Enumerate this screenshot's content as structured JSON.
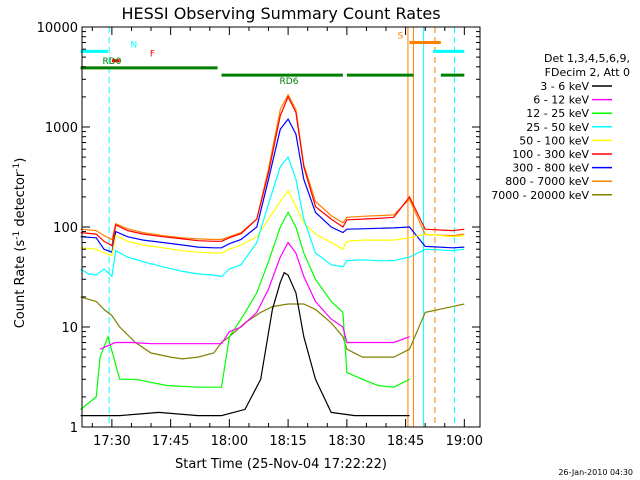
{
  "chart_data": {
    "type": "line",
    "title": "HESSI Observing Summary Count Rates",
    "xlabel": "Start Time (25-Nov-04 17:22:22)",
    "ylabel": "Count Rate (s",
    "ylabel_sup1": "-1",
    "ylabel_mid": " detector",
    "ylabel_sup2": "-1",
    "ylabel_end": ")",
    "y_scale": "log",
    "ylim": [
      1,
      10000
    ],
    "xlim": [
      "17:22:22",
      "19:04:00"
    ],
    "x_tick_labels": [
      "17:30",
      "17:45",
      "18:00",
      "18:15",
      "18:30",
      "18:45",
      "19:00"
    ],
    "x_tick_minutes": [
      450,
      465,
      480,
      495,
      510,
      525,
      540
    ],
    "y_tick_labels": [
      "1",
      "10",
      "100",
      "1000",
      "10000"
    ],
    "y_tick_values": [
      1,
      10,
      100,
      1000,
      10000
    ],
    "legend_header": [
      "Det 1,3,4,5,6,9,",
      "FDecim 2, Att 0"
    ],
    "legend_placement": "right",
    "series": [
      {
        "name": "3 - 6 keV",
        "color": "#000000",
        "points": [
          [
            442,
            1.3
          ],
          [
            452,
            1.3
          ],
          [
            462,
            1.4
          ],
          [
            472,
            1.3
          ],
          [
            478,
            1.3
          ],
          [
            484,
            1.5
          ],
          [
            488,
            3
          ],
          [
            491,
            15
          ],
          [
            493,
            28
          ],
          [
            494,
            35
          ],
          [
            495,
            33
          ],
          [
            497,
            22
          ],
          [
            499,
            8
          ],
          [
            502,
            3
          ],
          [
            506,
            1.4
          ],
          [
            512,
            1.3
          ],
          [
            522,
            1.3
          ],
          [
            526,
            1.3
          ]
        ]
      },
      {
        "name": "6 - 12 keV",
        "color": "#ff00ff",
        "points": [
          [
            447,
            6
          ],
          [
            449,
            6.5
          ],
          [
            451,
            7
          ],
          [
            455,
            7
          ],
          [
            460,
            6.8
          ],
          [
            465,
            6.8
          ],
          [
            470,
            6.8
          ],
          [
            475,
            6.8
          ],
          [
            478,
            6.8
          ],
          [
            480,
            9
          ],
          [
            483,
            10
          ],
          [
            487,
            14
          ],
          [
            490,
            24
          ],
          [
            493,
            50
          ],
          [
            495,
            70
          ],
          [
            497,
            55
          ],
          [
            499,
            32
          ],
          [
            502,
            18
          ],
          [
            506,
            12
          ],
          [
            509,
            10
          ],
          [
            510,
            7
          ],
          [
            514,
            7
          ],
          [
            518,
            7
          ],
          [
            522,
            7
          ],
          [
            526,
            8
          ]
        ]
      },
      {
        "name": "12 - 25 keV",
        "color": "#00ff00",
        "points": [
          [
            442,
            1.5
          ],
          [
            446,
            2
          ],
          [
            447,
            5
          ],
          [
            449,
            8
          ],
          [
            452,
            3
          ],
          [
            456,
            3
          ],
          [
            464,
            2.6
          ],
          [
            472,
            2.5
          ],
          [
            478,
            2.5
          ],
          [
            480,
            8
          ],
          [
            483,
            12
          ],
          [
            487,
            22
          ],
          [
            490,
            45
          ],
          [
            493,
            100
          ],
          [
            495,
            140
          ],
          [
            497,
            100
          ],
          [
            499,
            55
          ],
          [
            502,
            30
          ],
          [
            506,
            18
          ],
          [
            509,
            14
          ],
          [
            510,
            3.5
          ],
          [
            514,
            3
          ],
          [
            518,
            2.6
          ],
          [
            522,
            2.5
          ],
          [
            526,
            3
          ]
        ]
      },
      {
        "name": "25 - 50 keV",
        "color": "#00ffff",
        "points": [
          [
            442,
            38
          ],
          [
            444,
            34
          ],
          [
            446,
            33
          ],
          [
            448,
            38
          ],
          [
            450,
            32
          ],
          [
            451,
            58
          ],
          [
            454,
            50
          ],
          [
            458,
            45
          ],
          [
            463,
            40
          ],
          [
            468,
            36
          ],
          [
            472,
            34
          ],
          [
            476,
            33
          ],
          [
            478,
            32
          ],
          [
            480,
            38
          ],
          [
            483,
            42
          ],
          [
            487,
            70
          ],
          [
            490,
            170
          ],
          [
            493,
            400
          ],
          [
            495,
            500
          ],
          [
            497,
            300
          ],
          [
            499,
            120
          ],
          [
            502,
            55
          ],
          [
            506,
            42
          ],
          [
            509,
            40
          ],
          [
            510,
            46
          ],
          [
            514,
            47
          ],
          [
            518,
            46
          ],
          [
            522,
            46
          ],
          [
            526,
            50
          ],
          [
            530,
            60
          ],
          [
            537,
            58
          ],
          [
            540,
            60
          ]
        ]
      },
      {
        "name": "50 - 100 keV",
        "color": "#ffff00",
        "points": [
          [
            442,
            62
          ],
          [
            446,
            60
          ],
          [
            448,
            55
          ],
          [
            450,
            52
          ],
          [
            451,
            82
          ],
          [
            454,
            72
          ],
          [
            458,
            66
          ],
          [
            463,
            62
          ],
          [
            468,
            58
          ],
          [
            472,
            56
          ],
          [
            476,
            55
          ],
          [
            478,
            55
          ],
          [
            480,
            60
          ],
          [
            483,
            66
          ],
          [
            487,
            80
          ],
          [
            490,
            120
          ],
          [
            493,
            180
          ],
          [
            495,
            230
          ],
          [
            497,
            160
          ],
          [
            499,
            110
          ],
          [
            502,
            85
          ],
          [
            506,
            70
          ],
          [
            509,
            60
          ],
          [
            510,
            72
          ],
          [
            514,
            74
          ],
          [
            518,
            74
          ],
          [
            522,
            74
          ],
          [
            526,
            78
          ],
          [
            530,
            85
          ],
          [
            537,
            80
          ],
          [
            540,
            82
          ]
        ]
      },
      {
        "name": "100 - 300 keV",
        "color": "#ff0000",
        "points": [
          [
            442,
            88
          ],
          [
            446,
            85
          ],
          [
            448,
            72
          ],
          [
            450,
            65
          ],
          [
            451,
            105
          ],
          [
            454,
            92
          ],
          [
            458,
            85
          ],
          [
            463,
            80
          ],
          [
            468,
            76
          ],
          [
            472,
            73
          ],
          [
            476,
            72
          ],
          [
            478,
            72
          ],
          [
            480,
            78
          ],
          [
            483,
            86
          ],
          [
            487,
            120
          ],
          [
            490,
            350
          ],
          [
            493,
            1300
          ],
          [
            495,
            2000
          ],
          [
            497,
            1400
          ],
          [
            499,
            400
          ],
          [
            502,
            160
          ],
          [
            506,
            120
          ],
          [
            509,
            100
          ],
          [
            510,
            118
          ],
          [
            514,
            120
          ],
          [
            518,
            122
          ],
          [
            522,
            125
          ],
          [
            526,
            200
          ],
          [
            530,
            95
          ],
          [
            537,
            92
          ],
          [
            540,
            95
          ]
        ]
      },
      {
        "name": "300 - 800 keV",
        "color": "#0000ff",
        "points": [
          [
            442,
            80
          ],
          [
            446,
            78
          ],
          [
            448,
            60
          ],
          [
            450,
            56
          ],
          [
            451,
            90
          ],
          [
            454,
            80
          ],
          [
            458,
            74
          ],
          [
            463,
            70
          ],
          [
            468,
            66
          ],
          [
            472,
            63
          ],
          [
            476,
            62
          ],
          [
            478,
            62
          ],
          [
            480,
            68
          ],
          [
            483,
            75
          ],
          [
            487,
            100
          ],
          [
            490,
            300
          ],
          [
            493,
            950
          ],
          [
            495,
            1200
          ],
          [
            497,
            850
          ],
          [
            499,
            300
          ],
          [
            502,
            140
          ],
          [
            506,
            100
          ],
          [
            509,
            88
          ],
          [
            510,
            95
          ],
          [
            514,
            96
          ],
          [
            518,
            97
          ],
          [
            522,
            98
          ],
          [
            526,
            100
          ],
          [
            530,
            64
          ],
          [
            537,
            62
          ],
          [
            540,
            63
          ]
        ]
      },
      {
        "name": "800 - 7000 keV",
        "color": "#ff8000",
        "points": [
          [
            442,
            95
          ],
          [
            446,
            92
          ],
          [
            448,
            82
          ],
          [
            450,
            75
          ],
          [
            451,
            108
          ],
          [
            454,
            96
          ],
          [
            458,
            88
          ],
          [
            463,
            82
          ],
          [
            468,
            78
          ],
          [
            472,
            76
          ],
          [
            476,
            75
          ],
          [
            478,
            75
          ],
          [
            480,
            80
          ],
          [
            483,
            88
          ],
          [
            487,
            120
          ],
          [
            490,
            380
          ],
          [
            493,
            1500
          ],
          [
            495,
            2100
          ],
          [
            497,
            1500
          ],
          [
            499,
            420
          ],
          [
            502,
            180
          ],
          [
            506,
            130
          ],
          [
            509,
            110
          ],
          [
            510,
            125
          ],
          [
            514,
            128
          ],
          [
            518,
            130
          ],
          [
            522,
            132
          ],
          [
            526,
            190
          ],
          [
            530,
            84
          ],
          [
            537,
            82
          ],
          [
            540,
            85
          ]
        ]
      },
      {
        "name": "7000 - 20000 keV",
        "color": "#808000",
        "points": [
          [
            442,
            20
          ],
          [
            446,
            18
          ],
          [
            448,
            15
          ],
          [
            450,
            13
          ],
          [
            452,
            10
          ],
          [
            456,
            7
          ],
          [
            460,
            5.5
          ],
          [
            465,
            5
          ],
          [
            468,
            4.8
          ],
          [
            472,
            5
          ],
          [
            476,
            5.5
          ],
          [
            478,
            7
          ],
          [
            480,
            8
          ],
          [
            484,
            11
          ],
          [
            488,
            14
          ],
          [
            491,
            16
          ],
          [
            495,
            17
          ],
          [
            499,
            17
          ],
          [
            502,
            15
          ],
          [
            506,
            11
          ],
          [
            509,
            8
          ],
          [
            510,
            6
          ],
          [
            514,
            5
          ],
          [
            518,
            5
          ],
          [
            522,
            5
          ],
          [
            526,
            6
          ],
          [
            530,
            14
          ],
          [
            537,
            16
          ],
          [
            540,
            17
          ]
        ]
      }
    ],
    "flag_bars": [
      {
        "label": "N",
        "color": "#00ffff",
        "segments": [
          [
            442,
            449
          ],
          [
            532,
            540
          ]
        ],
        "level": 5700
      },
      {
        "label": "F",
        "color": "#ff0000",
        "segments": [
          [
            450,
            452
          ]
        ],
        "level": 4600
      },
      {
        "label": "RD0",
        "color": "#008000",
        "segments": [
          [
            442,
            477
          ]
        ],
        "level": 3900
      },
      {
        "label": "RD6",
        "color": "#008000",
        "segments": [
          [
            478,
            509
          ],
          [
            510,
            527
          ],
          [
            534,
            540
          ]
        ],
        "level": 3300
      },
      {
        "label": "S",
        "color": "#ff8000",
        "segments": [
          [
            526,
            534
          ]
        ],
        "level": 7000
      }
    ],
    "vertical_markers": [
      {
        "minute": 449.3,
        "color": "#00ffff",
        "style": "dashed"
      },
      {
        "minute": 525.6,
        "color": "#ff8000",
        "style": "solid"
      },
      {
        "minute": 527.0,
        "color": "#ff8000",
        "style": "solid"
      },
      {
        "minute": 529.6,
        "color": "#00ffff",
        "style": "solid"
      },
      {
        "minute": 532.5,
        "color": "#ff8000",
        "style": "dashed"
      },
      {
        "minute": 537.5,
        "color": "#00ffff",
        "style": "dashed"
      }
    ]
  },
  "footer_timestamp": "26-Jan-2010 04:30"
}
